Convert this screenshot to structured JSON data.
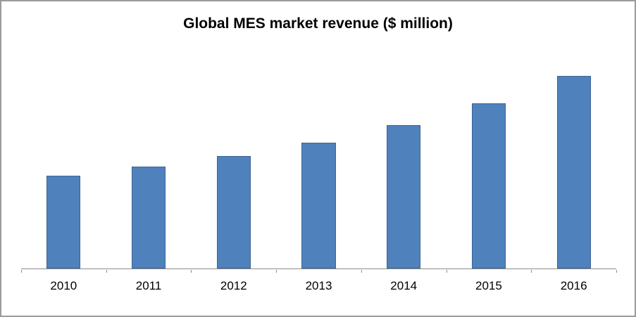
{
  "chart": {
    "title": "Global MES market revenue ($ million)"
  },
  "colors": {
    "bar_fill": "#4f81bd",
    "bar_border": "#3c6494",
    "axis": "#8c8c8c",
    "frame_border": "#9a9a9a",
    "background": "#ffffff"
  },
  "chart_data": {
    "type": "bar",
    "title": "Global MES market revenue ($ million)",
    "categories": [
      "2010",
      "2011",
      "2012",
      "2013",
      "2014",
      "2015",
      "2016"
    ],
    "values": [
      135,
      148,
      163,
      183,
      208,
      240,
      280
    ],
    "values_note": "y-axis has no tick labels in the image; values are relative magnitudes estimated from bar heights",
    "xlabel": "",
    "ylabel": "",
    "ylim": [
      0,
      330
    ],
    "grid": false,
    "legend": "none",
    "bar_color": "#4f81bd"
  }
}
